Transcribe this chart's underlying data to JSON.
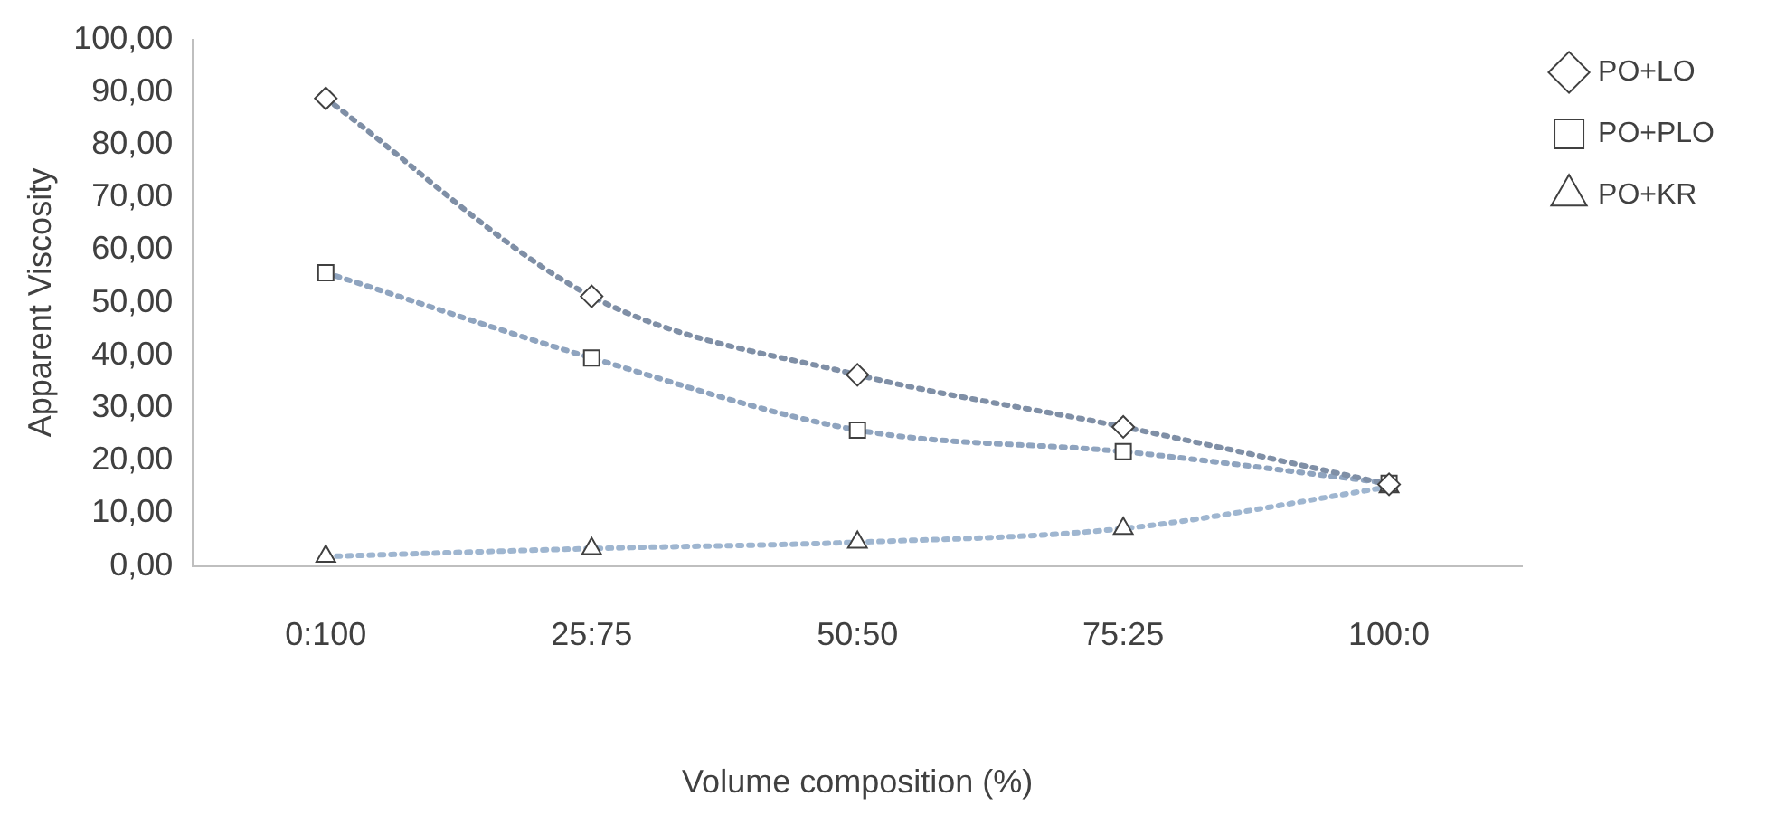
{
  "chart_data": {
    "type": "line",
    "xlabel": "Volume composition (%)",
    "ylabel": "Apparent Viscosity",
    "categories": [
      "0:100",
      "25:75",
      "50:50",
      "75:25",
      "100:0"
    ],
    "series": [
      {
        "name": "PO+LO",
        "color": "#7f8fa6",
        "marker": "diamond",
        "values": [
          88.8,
          51.2,
          36.3,
          26.4,
          15.5
        ]
      },
      {
        "name": "PO+PLO",
        "color": "#8fa4bf",
        "marker": "square",
        "values": [
          55.7,
          39.5,
          25.8,
          21.7,
          15.7
        ]
      },
      {
        "name": "PO+KR",
        "color": "#9fb6d0",
        "marker": "triangle",
        "values": [
          1.8,
          3.3,
          4.5,
          7.1,
          15.0
        ]
      }
    ],
    "ylim": [
      0,
      100
    ],
    "yticks": [
      {
        "value": 0,
        "label": "0,00"
      },
      {
        "value": 10,
        "label": "10,00"
      },
      {
        "value": 20,
        "label": "20,00"
      },
      {
        "value": 30,
        "label": "30,00"
      },
      {
        "value": 40,
        "label": "40,00"
      },
      {
        "value": 50,
        "label": "50,00"
      },
      {
        "value": 60,
        "label": "60,00"
      },
      {
        "value": 70,
        "label": "70,00"
      },
      {
        "value": 80,
        "label": "80,00"
      },
      {
        "value": 90,
        "label": "90,00"
      },
      {
        "value": 100,
        "label": "100,00"
      }
    ],
    "grid": false,
    "legend": "top right",
    "line_style": "dotted"
  }
}
